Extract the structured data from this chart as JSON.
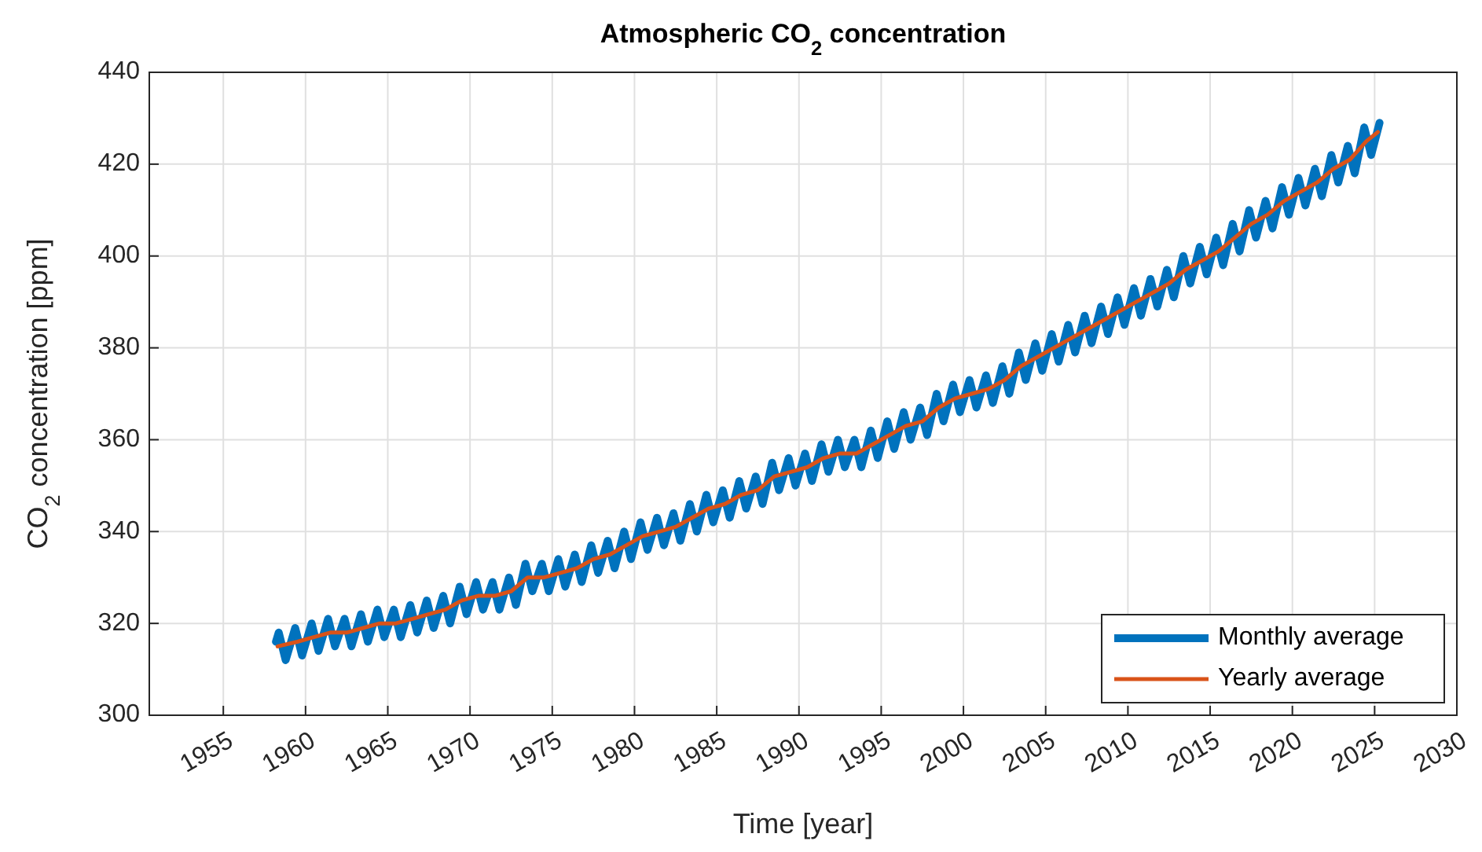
{
  "chart_data": {
    "type": "line",
    "title": "Atmospheric CO$_{2}$ concentration",
    "xlabel": "Time [year]",
    "ylabel": "CO$_{2}$ concentration [ppm]",
    "xlim": [
      1950.5,
      2030
    ],
    "xticks": [
      1955,
      1960,
      1965,
      1970,
      1975,
      1980,
      1985,
      1990,
      1995,
      2000,
      2005,
      2010,
      2015,
      2020,
      2025,
      2030
    ],
    "ylim": [
      300,
      440
    ],
    "yticks": [
      300,
      320,
      340,
      360,
      380,
      400,
      420,
      440
    ],
    "grid": true,
    "legend": "bottom right",
    "line_style": "solid",
    "series": [
      {
        "name": "Monthly average",
        "color": "#0072bd",
        "x": [
          1958.2,
          1958.37,
          1958.79,
          1959.37,
          1959.79,
          1960.37,
          1960.79,
          1961.37,
          1961.79,
          1962.37,
          1962.79,
          1963.37,
          1963.79,
          1964.37,
          1964.79,
          1965.37,
          1965.79,
          1966.37,
          1966.79,
          1967.37,
          1967.79,
          1968.37,
          1968.79,
          1969.37,
          1969.79,
          1970.37,
          1970.79,
          1971.37,
          1971.79,
          1972.37,
          1972.79,
          1973.37,
          1973.79,
          1974.37,
          1974.79,
          1975.37,
          1975.79,
          1976.37,
          1976.79,
          1977.37,
          1977.79,
          1978.37,
          1978.79,
          1979.37,
          1979.79,
          1980.37,
          1980.79,
          1981.37,
          1981.79,
          1982.37,
          1982.79,
          1983.37,
          1983.79,
          1984.37,
          1984.79,
          1985.37,
          1985.79,
          1986.37,
          1986.79,
          1987.37,
          1987.79,
          1988.37,
          1988.79,
          1989.37,
          1989.79,
          1990.37,
          1990.79,
          1991.37,
          1991.79,
          1992.37,
          1992.79,
          1993.37,
          1993.79,
          1994.37,
          1994.79,
          1995.37,
          1995.79,
          1996.37,
          1996.79,
          1997.37,
          1997.79,
          1998.37,
          1998.79,
          1999.37,
          1999.79,
          2000.37,
          2000.79,
          2001.37,
          2001.79,
          2002.37,
          2002.79,
          2003.37,
          2003.79,
          2004.37,
          2004.79,
          2005.37,
          2005.79,
          2006.37,
          2006.79,
          2007.37,
          2007.79,
          2008.37,
          2008.79,
          2009.37,
          2009.79,
          2010.37,
          2010.79,
          2011.37,
          2011.79,
          2012.37,
          2012.79,
          2013.37,
          2013.79,
          2014.37,
          2014.79,
          2015.37,
          2015.79,
          2016.37,
          2016.79,
          2017.37,
          2017.79,
          2018.37,
          2018.79,
          2019.37,
          2019.79,
          2020.37,
          2020.79,
          2021.37,
          2021.79,
          2022.37,
          2022.79,
          2023.37,
          2023.79,
          2024.37,
          2024.79,
          2025.3
        ],
        "values": [
          316,
          318,
          312,
          319,
          313,
          320,
          314,
          321,
          315,
          321,
          315,
          322,
          316,
          323,
          317,
          323,
          317,
          324,
          318,
          325,
          319,
          326,
          320,
          328,
          322,
          329,
          323,
          329,
          323,
          330,
          324,
          333,
          327,
          333,
          327,
          334,
          328,
          335,
          329,
          337,
          331,
          338,
          332,
          340,
          334,
          342,
          336,
          343,
          337,
          344,
          338,
          346,
          340,
          348,
          342,
          349,
          343,
          351,
          345,
          352,
          346,
          355,
          349,
          356,
          350,
          357,
          351,
          359,
          353,
          360,
          354,
          360,
          354,
          362,
          356,
          364,
          358,
          366,
          360,
          367,
          361,
          370,
          364,
          372,
          366,
          373,
          367,
          374,
          368,
          376,
          370,
          379,
          373,
          381,
          375,
          383,
          377,
          385,
          379,
          387,
          381,
          389,
          383,
          391,
          385,
          393,
          387,
          395,
          389,
          397,
          391,
          400,
          394,
          402,
          396,
          404,
          398,
          407,
          401,
          410,
          404,
          412,
          406,
          415,
          409,
          417,
          411,
          419,
          413,
          422,
          416,
          424,
          418,
          428,
          422,
          429
        ]
      },
      {
        "name": "Yearly average",
        "color": "#d95319",
        "x": [
          1958.3,
          1959.5,
          1960.5,
          1961.5,
          1962.5,
          1963.5,
          1964.5,
          1965.5,
          1966.5,
          1967.5,
          1968.5,
          1969.5,
          1970.5,
          1971.5,
          1972.5,
          1973.5,
          1974.5,
          1975.5,
          1976.5,
          1977.5,
          1978.5,
          1979.5,
          1980.5,
          1981.5,
          1982.5,
          1983.5,
          1984.5,
          1985.5,
          1986.5,
          1987.5,
          1988.5,
          1989.5,
          1990.5,
          1991.5,
          1992.5,
          1993.5,
          1994.5,
          1995.5,
          1996.5,
          1997.5,
          1998.5,
          1999.5,
          2000.5,
          2001.5,
          2002.5,
          2003.5,
          2004.5,
          2005.5,
          2006.5,
          2007.5,
          2008.5,
          2009.5,
          2010.5,
          2011.5,
          2012.5,
          2013.5,
          2014.5,
          2015.5,
          2016.5,
          2017.5,
          2018.5,
          2019.5,
          2020.5,
          2021.5,
          2022.5,
          2023.5,
          2024.5,
          2025.2
        ],
        "values": [
          315,
          316,
          317,
          318,
          318,
          319,
          320,
          320,
          321,
          322,
          323,
          325,
          326,
          326,
          327,
          330,
          330,
          331,
          332,
          334,
          335,
          337,
          339,
          340,
          341,
          343,
          345,
          346,
          348,
          349,
          352,
          353,
          354,
          356,
          357,
          357,
          359,
          361,
          363,
          364,
          367,
          369,
          370,
          371,
          373,
          376,
          378,
          380,
          382,
          384,
          386,
          388,
          390,
          392,
          394,
          397,
          399,
          401,
          404,
          407,
          409,
          412,
          414,
          416,
          419,
          421,
          425,
          427
        ]
      }
    ]
  }
}
